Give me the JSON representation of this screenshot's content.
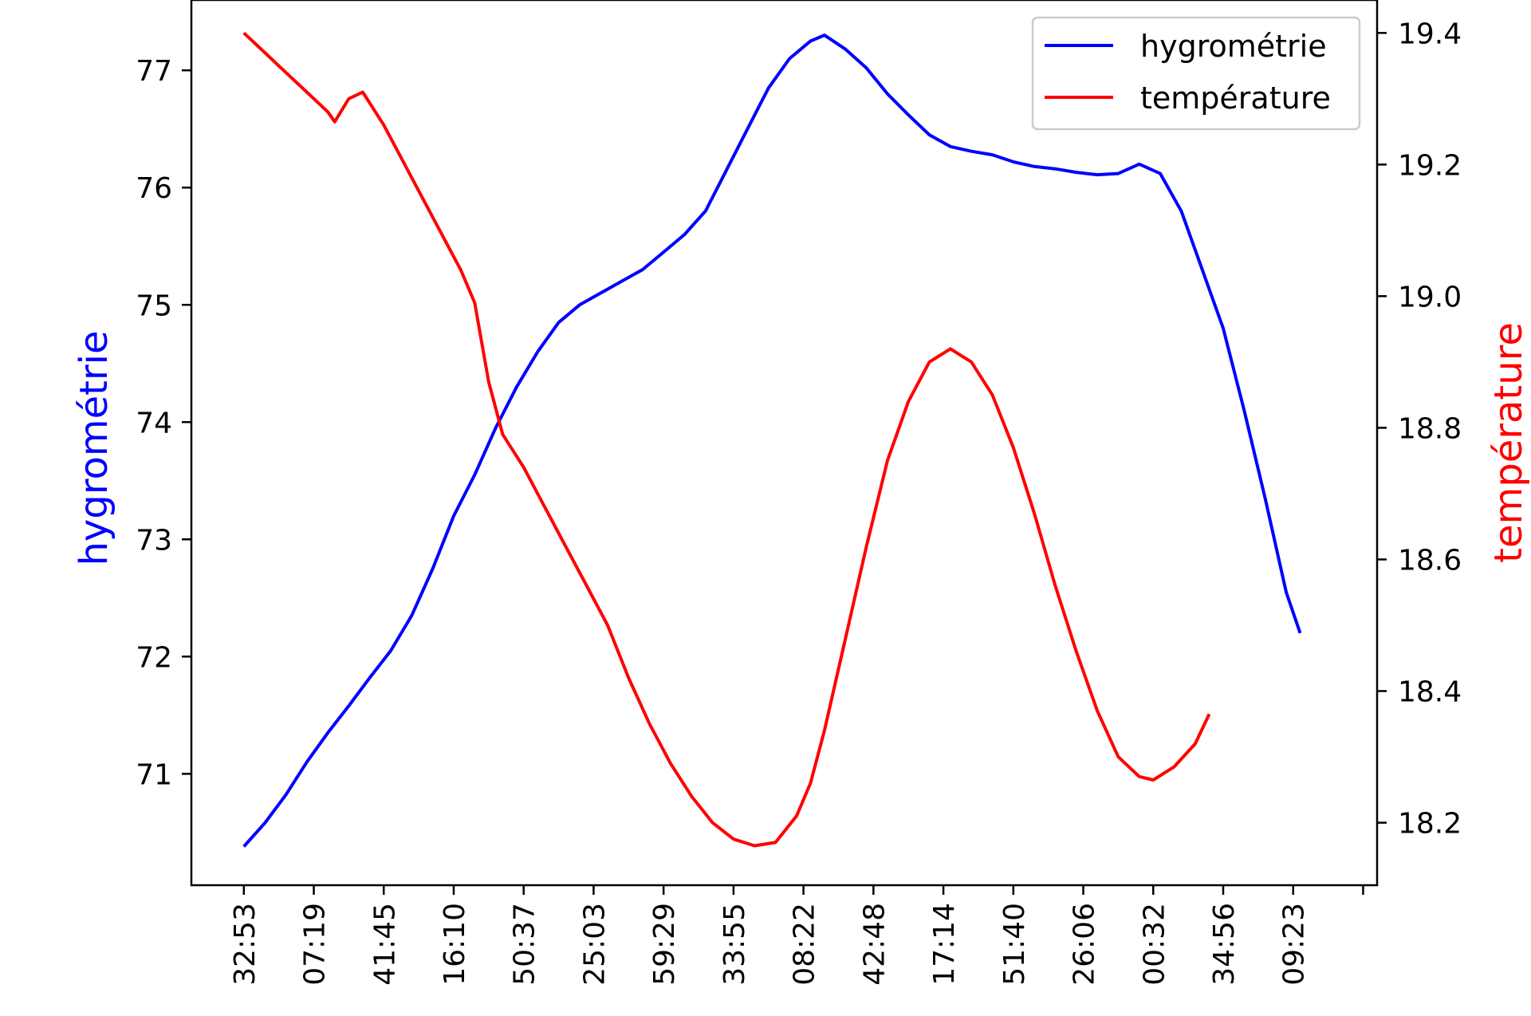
{
  "chart_data": {
    "type": "line",
    "title": "",
    "xlabel": "",
    "x_ticks": [
      "32:53",
      "07:19",
      "41:45",
      "16:10",
      "50:37",
      "25:03",
      "59:29",
      "33:55",
      "08:22",
      "42:48",
      "17:14",
      "51:40",
      "26:06",
      "00:32",
      "34:56",
      "09:23"
    ],
    "x_range": [
      -0.75,
      16.2
    ],
    "left_axis": {
      "label": "hygrométrie",
      "color": "#0000ff",
      "range": [
        70.05,
        77.6
      ],
      "ticks": [
        71,
        72,
        73,
        74,
        75,
        76,
        77
      ]
    },
    "right_axis": {
      "label": "température",
      "color": "#ff0000",
      "range": [
        18.105,
        19.45
      ],
      "ticks": [
        "18.2",
        "18.4",
        "18.6",
        "18.8",
        "19.0",
        "19.2",
        "19.4"
      ]
    },
    "legend": {
      "position": "top-right"
    },
    "grid": false,
    "series": [
      {
        "name": "hygrométrie",
        "axis": "left",
        "color": "#0000ff",
        "points": [
          [
            0,
            70.38
          ],
          [
            0.3,
            70.58
          ],
          [
            0.6,
            70.82
          ],
          [
            0.9,
            71.1
          ],
          [
            1.2,
            71.35
          ],
          [
            1.5,
            71.58
          ],
          [
            1.8,
            71.82
          ],
          [
            2.1,
            72.05
          ],
          [
            2.4,
            72.35
          ],
          [
            2.7,
            72.75
          ],
          [
            3.0,
            73.2
          ],
          [
            3.3,
            73.55
          ],
          [
            3.6,
            73.95
          ],
          [
            3.9,
            74.3
          ],
          [
            4.2,
            74.6
          ],
          [
            4.5,
            74.85
          ],
          [
            4.8,
            75.0
          ],
          [
            5.1,
            75.1
          ],
          [
            5.4,
            75.2
          ],
          [
            5.7,
            75.3
          ],
          [
            6.0,
            75.45
          ],
          [
            6.3,
            75.6
          ],
          [
            6.6,
            75.8
          ],
          [
            6.9,
            76.15
          ],
          [
            7.2,
            76.5
          ],
          [
            7.5,
            76.85
          ],
          [
            7.8,
            77.1
          ],
          [
            8.1,
            77.25
          ],
          [
            8.3,
            77.3
          ],
          [
            8.6,
            77.18
          ],
          [
            8.9,
            77.02
          ],
          [
            9.2,
            76.8
          ],
          [
            9.5,
            76.62
          ],
          [
            9.8,
            76.45
          ],
          [
            10.1,
            76.35
          ],
          [
            10.4,
            76.31
          ],
          [
            10.7,
            76.28
          ],
          [
            11.0,
            76.22
          ],
          [
            11.3,
            76.18
          ],
          [
            11.6,
            76.16
          ],
          [
            11.9,
            76.13
          ],
          [
            12.2,
            76.11
          ],
          [
            12.5,
            76.12
          ],
          [
            12.8,
            76.2
          ],
          [
            13.1,
            76.12
          ],
          [
            13.4,
            75.8
          ],
          [
            13.7,
            75.3
          ],
          [
            14.0,
            74.8
          ],
          [
            14.3,
            74.1
          ],
          [
            14.6,
            73.35
          ],
          [
            14.9,
            72.55
          ],
          [
            15.1,
            72.2
          ]
        ]
      },
      {
        "name": "température",
        "axis": "right",
        "color": "#ff0000",
        "points": [
          [
            0,
            19.4
          ],
          [
            0.3,
            19.37
          ],
          [
            0.6,
            19.34
          ],
          [
            0.9,
            19.31
          ],
          [
            1.2,
            19.28
          ],
          [
            1.3,
            19.265
          ],
          [
            1.5,
            19.3
          ],
          [
            1.7,
            19.31
          ],
          [
            2.0,
            19.26
          ],
          [
            2.4,
            19.18
          ],
          [
            2.8,
            19.1
          ],
          [
            3.1,
            19.04
          ],
          [
            3.3,
            18.99
          ],
          [
            3.5,
            18.87
          ],
          [
            3.7,
            18.79
          ],
          [
            4.0,
            18.74
          ],
          [
            4.3,
            18.68
          ],
          [
            4.6,
            18.62
          ],
          [
            4.9,
            18.56
          ],
          [
            5.2,
            18.5
          ],
          [
            5.5,
            18.42
          ],
          [
            5.8,
            18.35
          ],
          [
            6.1,
            18.29
          ],
          [
            6.4,
            18.24
          ],
          [
            6.7,
            18.2
          ],
          [
            7.0,
            18.175
          ],
          [
            7.3,
            18.165
          ],
          [
            7.6,
            18.17
          ],
          [
            7.9,
            18.21
          ],
          [
            8.1,
            18.26
          ],
          [
            8.3,
            18.34
          ],
          [
            8.6,
            18.48
          ],
          [
            8.9,
            18.62
          ],
          [
            9.2,
            18.75
          ],
          [
            9.5,
            18.84
          ],
          [
            9.8,
            18.9
          ],
          [
            10.1,
            18.92
          ],
          [
            10.4,
            18.9
          ],
          [
            10.7,
            18.85
          ],
          [
            11.0,
            18.77
          ],
          [
            11.3,
            18.67
          ],
          [
            11.6,
            18.56
          ],
          [
            11.9,
            18.46
          ],
          [
            12.2,
            18.37
          ],
          [
            12.5,
            18.3
          ],
          [
            12.8,
            18.27
          ],
          [
            13.0,
            18.265
          ],
          [
            13.3,
            18.285
          ],
          [
            13.6,
            18.32
          ],
          [
            13.8,
            18.365
          ]
        ]
      }
    ]
  }
}
